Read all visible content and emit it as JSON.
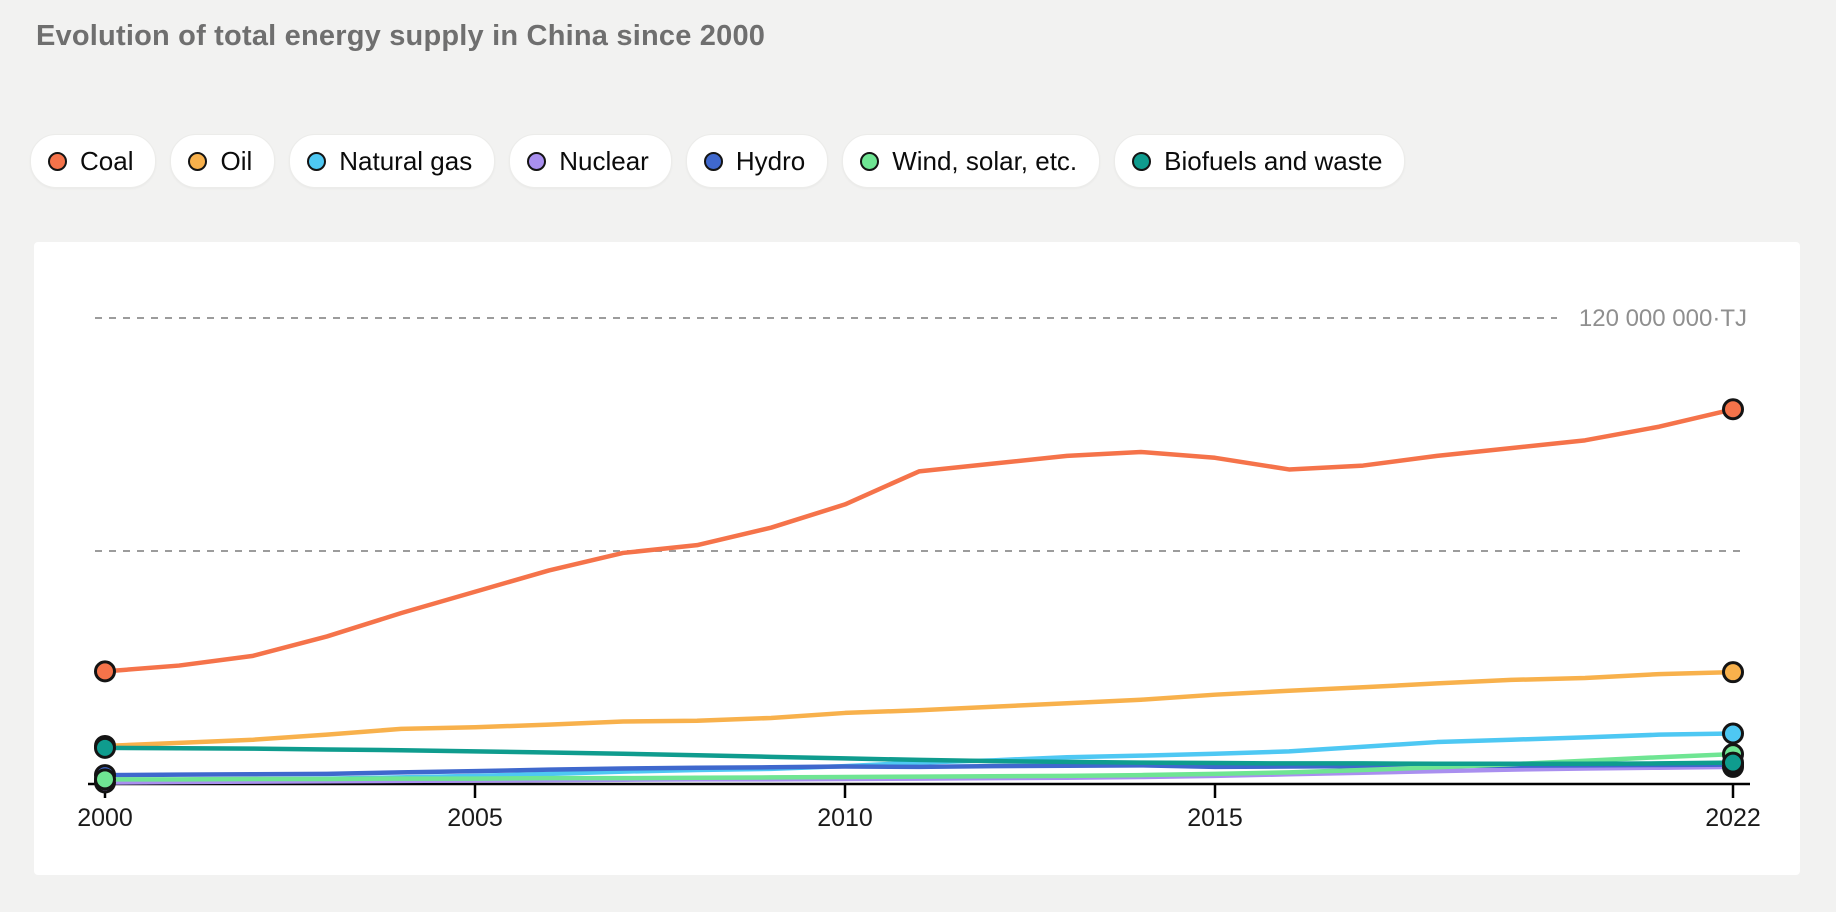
{
  "page": {
    "background_color": "#F2F2F1",
    "card_background_color": "#FFFFFF"
  },
  "header": {
    "title": "Evolution of total energy supply in China since 2000"
  },
  "legend": {
    "items": [
      {
        "label": "Coal",
        "color": "#F5734A"
      },
      {
        "label": "Oil",
        "color": "#F8B14C"
      },
      {
        "label": "Natural gas",
        "color": "#4EC8F3"
      },
      {
        "label": "Nuclear",
        "color": "#A98FEF"
      },
      {
        "label": "Hydro",
        "color": "#3F68CD"
      },
      {
        "label": "Wind, solar, etc.",
        "color": "#6FE593"
      },
      {
        "label": "Biofuels and waste",
        "color": "#0F9C8E"
      }
    ]
  },
  "chart_data": {
    "type": "line",
    "title": "Evolution of total energy supply in China since 2000",
    "unit": "TJ",
    "values_unit": "million TJ",
    "x": [
      2000,
      2001,
      2002,
      2003,
      2004,
      2005,
      2006,
      2007,
      2008,
      2009,
      2010,
      2011,
      2012,
      2013,
      2014,
      2015,
      2016,
      2017,
      2018,
      2019,
      2020,
      2021,
      2022
    ],
    "x_tick_years": [
      2000,
      2005,
      2010,
      2015,
      2022
    ],
    "x_tick_labels": [
      "2000",
      "2005",
      "2010",
      "2015",
      "2022"
    ],
    "ylim_million_tj": [
      0,
      130
    ],
    "gridlines_million_tj": [
      60,
      120
    ],
    "grid_label": "120 000 000·TJ",
    "grid_style": "dashed horizontal",
    "legend_position": "top",
    "marker_style": "circles with black outline at first and last point of each series",
    "series": [
      {
        "name": "Coal",
        "color": "#F5734A",
        "values": [
          29,
          30.5,
          33,
          38,
          44,
          49.5,
          55,
          59.5,
          61.5,
          66,
          72,
          80.5,
          82.5,
          84.5,
          85.5,
          84,
          81,
          82,
          84.5,
          86.5,
          88.5,
          92,
          96.5
        ]
      },
      {
        "name": "Oil",
        "color": "#F8B14C",
        "values": [
          9.8,
          10.6,
          11.4,
          12.7,
          14.2,
          14.6,
          15.3,
          16.1,
          16.3,
          17,
          18.3,
          19,
          19.9,
          20.8,
          21.7,
          23,
          24,
          24.9,
          25.9,
          26.8,
          27.3,
          28.3,
          28.8
        ]
      },
      {
        "name": "Natural gas",
        "color": "#4EC8F3",
        "values": [
          0.9,
          1,
          1.2,
          1.4,
          1.7,
          2.1,
          2.6,
          3.2,
          3.6,
          3.9,
          4.6,
          5.5,
          6.1,
          6.9,
          7.3,
          7.8,
          8.4,
          9.6,
          10.8,
          11.4,
          12,
          12.7,
          13
        ]
      },
      {
        "name": "Nuclear",
        "color": "#A98FEF",
        "values": [
          0.4,
          0.5,
          0.6,
          0.7,
          0.8,
          0.9,
          1,
          1.1,
          1.2,
          1.2,
          1.3,
          1.4,
          1.5,
          1.6,
          1.8,
          2.1,
          2.5,
          2.9,
          3.3,
          3.7,
          4,
          4.2,
          4.4
        ]
      },
      {
        "name": "Hydro",
        "color": "#3F68CD",
        "values": [
          2.3,
          2.4,
          2.5,
          2.6,
          3,
          3.3,
          3.7,
          4,
          4.2,
          4.3,
          4.5,
          4.4,
          4.6,
          4.7,
          4.8,
          4.4,
          4.5,
          4.6,
          4.7,
          4.7,
          4.8,
          4.9,
          5
        ]
      },
      {
        "name": "Wind, solar, etc.",
        "color": "#6FE593",
        "values": [
          1.2,
          1.2,
          1.3,
          1.3,
          1.4,
          1.4,
          1.5,
          1.5,
          1.6,
          1.7,
          1.8,
          1.9,
          2,
          2.1,
          2.3,
          2.6,
          3,
          3.6,
          4.3,
          5.1,
          6,
          6.9,
          7.7
        ]
      },
      {
        "name": "Biofuels and waste",
        "color": "#0F9C8E",
        "values": [
          9.3,
          9.2,
          9.1,
          8.9,
          8.7,
          8.4,
          8.1,
          7.8,
          7.4,
          7,
          6.6,
          6.2,
          5.9,
          5.7,
          5.5,
          5.4,
          5.3,
          5.3,
          5.2,
          5.2,
          5.2,
          5.3,
          5.5
        ]
      }
    ]
  }
}
